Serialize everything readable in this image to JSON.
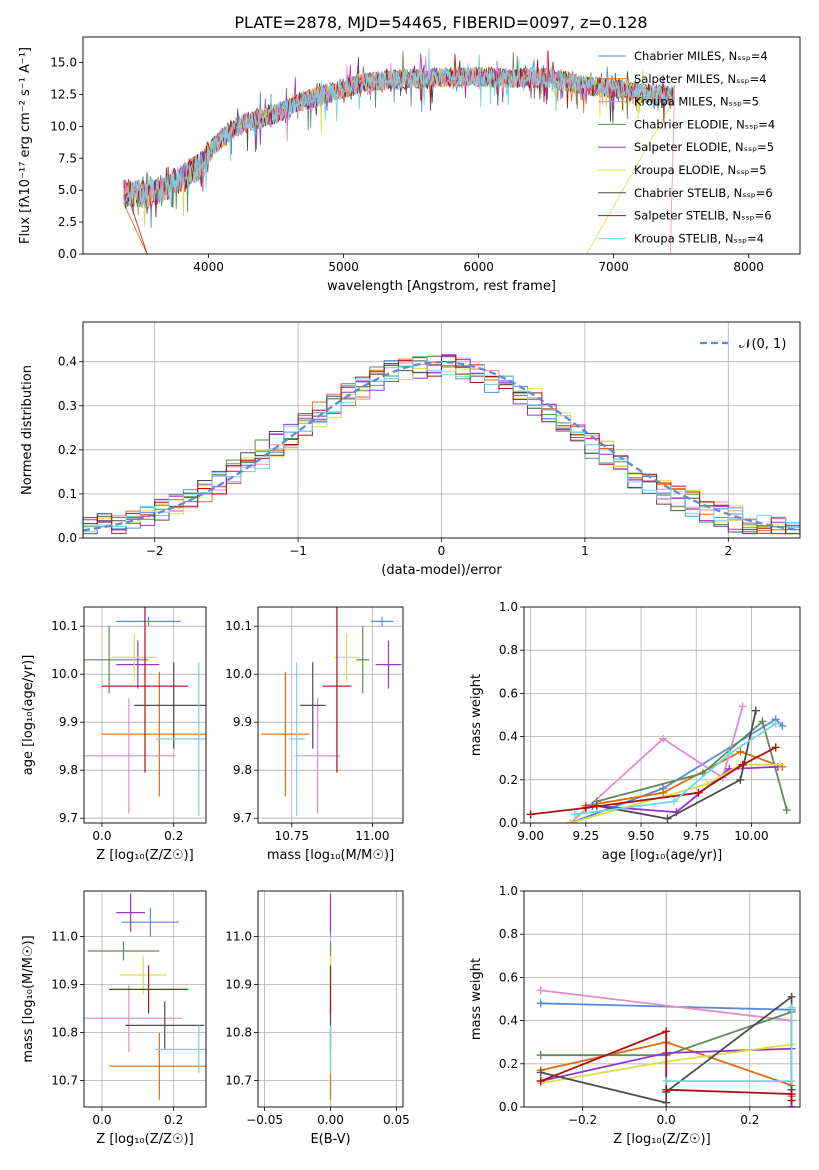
{
  "title": "PLATE=2878, MJD=54465, FIBERID=0097, z=0.128",
  "model_colors": [
    "#5b8bd9",
    "#e06c10",
    "#e58dc6",
    "#5f8a5c",
    "#9933cc",
    "#d7e04a",
    "#4d4d4d",
    "#aa1111",
    "#70d6e0"
  ],
  "chart_data": [
    {
      "id": "spectrum",
      "type": "line",
      "title": "PLATE=2878, MJD=54465, FIBERID=0097, z=0.128",
      "xlabel": "wavelength [Angstrom, rest frame]",
      "ylabel": "Flux [fλ10⁻¹⁷ erg cm⁻² s⁻¹ A⁻¹]",
      "xlim": [
        3070,
        8380
      ],
      "ylim": [
        0,
        17
      ],
      "xticks": [
        "4000",
        "5000",
        "6000",
        "7000",
        "8000"
      ],
      "yticks": [
        "0.0",
        "2.5",
        "5.0",
        "7.5",
        "10.0",
        "12.5",
        "15.0"
      ],
      "legend_position": "upper right",
      "series": [
        {
          "name": "Chabrier MILES, N_SSP=4"
        },
        {
          "name": "Salpeter MILES, N_SSP=4"
        },
        {
          "name": "Kroupa MILES, N_SSP=5"
        },
        {
          "name": "Chabrier ELODIE, N_SSP=4"
        },
        {
          "name": "Salpeter ELODIE, N_SSP=5"
        },
        {
          "name": "Kroupa ELODIE, N_SSP=5"
        },
        {
          "name": "Chabrier STELIB, N_SSP=6"
        },
        {
          "name": "Salpeter STELIB, N_SSP=6"
        },
        {
          "name": "Kroupa STELIB, N_SSP=4"
        }
      ],
      "continuum": {
        "x": [
          3400,
          3550,
          3700,
          3850,
          3950,
          4050,
          4150,
          4300,
          4500,
          4700,
          4900,
          5100,
          5300,
          5600,
          5900,
          6200,
          6500,
          6800,
          7000,
          7200,
          7400
        ],
        "y": [
          4.8,
          4.7,
          5.3,
          6.3,
          7.0,
          8.6,
          9.6,
          10.4,
          11.0,
          12.0,
          12.6,
          13.3,
          13.6,
          13.8,
          13.9,
          13.8,
          13.8,
          13.2,
          13.0,
          12.6,
          12.4
        ]
      }
    },
    {
      "id": "residuals",
      "type": "step",
      "xlabel": "(data-model)/error",
      "ylabel": "Normed distribution",
      "xlim": [
        -2.5,
        2.5
      ],
      "ylim": [
        0,
        0.49
      ],
      "xticks": [
        "−2",
        "−1",
        "0",
        "1",
        "2"
      ],
      "yticks": [
        "0.0",
        "0.1",
        "0.2",
        "0.3",
        "0.4"
      ],
      "grid": true,
      "legend_position": "upper right",
      "legend_label": "𝒩(0, 1)",
      "bin_width": 0.1,
      "gaussian": {
        "mean": 0,
        "sigma": 1
      }
    },
    {
      "id": "age-Z",
      "type": "errorbar",
      "xlabel": "Z [log₁₀(Z/Z☉)]",
      "ylabel": "age  [log₁₀(age/yr)]",
      "xlim": [
        -0.05,
        0.29
      ],
      "ylim": [
        9.69,
        10.14
      ],
      "xticks": [
        "0.0",
        "0.2"
      ],
      "yticks": [
        "9.7",
        "9.8",
        "9.9",
        "10.0",
        "10.1"
      ],
      "grid": true,
      "points": [
        {
          "x": 0.13,
          "y": 10.11,
          "xerr": 0.09,
          "yerr": 0.01
        },
        {
          "x": 0.16,
          "y": 9.875,
          "xerr": 0.16,
          "yerr": 0.13
        },
        {
          "x": 0.075,
          "y": 9.83,
          "xerr": 0.13,
          "yerr": 0.12
        },
        {
          "x": 0.02,
          "y": 10.03,
          "xerr": 0.11,
          "yerr": 0.07
        },
        {
          "x": 0.1,
          "y": 10.02,
          "xerr": 0.06,
          "yerr": 0.05
        },
        {
          "x": 0.09,
          "y": 10.035,
          "xerr": 0.065,
          "yerr": 0.05
        },
        {
          "x": 0.2,
          "y": 9.935,
          "xerr": 0.11,
          "yerr": 0.09
        },
        {
          "x": 0.12,
          "y": 9.975,
          "xerr": 0.12,
          "yerr": 0.18
        },
        {
          "x": 0.27,
          "y": 9.865,
          "xerr": 0.12,
          "yerr": 0.16
        }
      ]
    },
    {
      "id": "age-mass",
      "type": "errorbar",
      "xlabel": "mass [log₁₀(M/M☉)]",
      "ylabel": "",
      "xlim": [
        10.645,
        11.095
      ],
      "ylim": [
        9.69,
        10.14
      ],
      "xticks": [
        "10.75",
        "11.00"
      ],
      "yticks": [
        "9.7",
        "9.8",
        "9.9",
        "10.0",
        "10.1"
      ],
      "grid": true,
      "points": [
        {
          "x": 11.03,
          "y": 10.11,
          "xerr": 0.035,
          "yerr": 0.01
        },
        {
          "x": 10.73,
          "y": 9.875,
          "xerr": 0.075,
          "yerr": 0.13
        },
        {
          "x": 10.83,
          "y": 9.83,
          "xerr": 0.07,
          "yerr": 0.12
        },
        {
          "x": 10.97,
          "y": 10.03,
          "xerr": 0.02,
          "yerr": 0.07
        },
        {
          "x": 11.05,
          "y": 10.02,
          "xerr": 0.04,
          "yerr": 0.05
        },
        {
          "x": 10.92,
          "y": 10.035,
          "xerr": 0.04,
          "yerr": 0.05
        },
        {
          "x": 10.815,
          "y": 9.935,
          "xerr": 0.04,
          "yerr": 0.09
        },
        {
          "x": 10.89,
          "y": 9.975,
          "xerr": 0.045,
          "yerr": 0.18
        },
        {
          "x": 10.765,
          "y": 9.865,
          "xerr": 0.025,
          "yerr": 0.16
        }
      ]
    },
    {
      "id": "weight-age",
      "type": "line",
      "xlabel": "age  [log₁₀(age/yr)]",
      "ylabel": "mass weight",
      "xlim": [
        8.97,
        10.22
      ],
      "ylim": [
        0,
        1.0
      ],
      "xticks": [
        "9.00",
        "9.25",
        "9.50",
        "9.75",
        "10.00"
      ],
      "yticks": [
        "0.0",
        "0.2",
        "0.4",
        "0.6",
        "0.8",
        "1.0"
      ],
      "grid": true,
      "series": [
        {
          "x": [
            9.18,
            9.6,
            10.11,
            10.14
          ],
          "y": [
            0.0,
            0.16,
            0.48,
            0.45
          ]
        },
        {
          "x": [
            9.25,
            9.6,
            9.95,
            10.14
          ],
          "y": [
            0.08,
            0.14,
            0.33,
            0.26
          ]
        },
        {
          "x": [
            9.18,
            9.6,
            9.87,
            9.96
          ],
          "y": [
            0.0,
            0.39,
            0.21,
            0.54
          ]
        },
        {
          "x": [
            9.3,
            9.78,
            10.05,
            10.16
          ],
          "y": [
            0.1,
            0.23,
            0.47,
            0.06
          ]
        },
        {
          "x": [
            9.28,
            9.66,
            9.9,
            10.12
          ],
          "y": [
            0.08,
            0.05,
            0.25,
            0.26
          ]
        },
        {
          "x": [
            9.18,
            9.8,
            9.95,
            10.13
          ],
          "y": [
            0.0,
            0.18,
            0.27,
            0.27
          ]
        },
        {
          "x": [
            9.3,
            9.62,
            9.95,
            10.02
          ],
          "y": [
            0.08,
            0.02,
            0.2,
            0.52
          ]
        },
        {
          "x": [
            9.0,
            9.25,
            9.76,
            9.96,
            10.11
          ],
          "y": [
            0.04,
            0.07,
            0.14,
            0.27,
            0.35
          ]
        },
        {
          "x": [
            9.2,
            9.65,
            9.9,
            10.11
          ],
          "y": [
            0.04,
            0.1,
            0.32,
            0.46
          ]
        }
      ]
    },
    {
      "id": "mass-Z",
      "type": "errorbar",
      "xlabel": "Z [log₁₀(Z/Z☉)]",
      "ylabel": "mass [log₁₀(M/M☉)]",
      "xlim": [
        -0.05,
        0.29
      ],
      "ylim": [
        10.645,
        11.095
      ],
      "xticks": [
        "0.0",
        "0.2"
      ],
      "yticks": [
        "10.7",
        "10.8",
        "10.9",
        "11.0"
      ],
      "grid": true,
      "points": [
        {
          "x": 0.135,
          "y": 11.03,
          "xerr": 0.08,
          "yerr": 0.03
        },
        {
          "x": 0.16,
          "y": 10.73,
          "xerr": 0.14,
          "yerr": 0.07
        },
        {
          "x": 0.075,
          "y": 10.83,
          "xerr": 0.15,
          "yerr": 0.07
        },
        {
          "x": 0.06,
          "y": 10.97,
          "xerr": 0.1,
          "yerr": 0.02
        },
        {
          "x": 0.08,
          "y": 11.05,
          "xerr": 0.04,
          "yerr": 0.04
        },
        {
          "x": 0.115,
          "y": 10.92,
          "xerr": 0.065,
          "yerr": 0.04
        },
        {
          "x": 0.175,
          "y": 10.815,
          "xerr": 0.11,
          "yerr": 0.05
        },
        {
          "x": 0.13,
          "y": 10.89,
          "xerr": 0.11,
          "yerr": 0.05
        },
        {
          "x": 0.27,
          "y": 10.765,
          "xerr": 0.12,
          "yerr": 0.05
        }
      ]
    },
    {
      "id": "mass-ebv",
      "type": "errorbar",
      "xlabel": "E(B-V)",
      "ylabel": "",
      "xlim": [
        -0.055,
        0.055
      ],
      "ylim": [
        10.645,
        11.095
      ],
      "xticks": [
        "−0.05",
        "0.00",
        "0.05"
      ],
      "yticks": [
        "10.7",
        "10.8",
        "10.9",
        "11.0"
      ],
      "grid": true,
      "points": [
        {
          "x": 0,
          "y": 11.03,
          "xerr": 0,
          "yerr": 0.03
        },
        {
          "x": 0,
          "y": 10.73,
          "xerr": 0,
          "yerr": 0.07
        },
        {
          "x": 0,
          "y": 10.83,
          "xerr": 0,
          "yerr": 0.07
        },
        {
          "x": 0,
          "y": 10.97,
          "xerr": 0,
          "yerr": 0.02
        },
        {
          "x": 0,
          "y": 11.05,
          "xerr": 0,
          "yerr": 0.04
        },
        {
          "x": 0,
          "y": 10.92,
          "xerr": 0,
          "yerr": 0.04
        },
        {
          "x": 0,
          "y": 10.815,
          "xerr": 0,
          "yerr": 0.05
        },
        {
          "x": 0,
          "y": 10.89,
          "xerr": 0,
          "yerr": 0.05
        },
        {
          "x": 0,
          "y": 10.765,
          "xerr": 0,
          "yerr": 0.05
        }
      ]
    },
    {
      "id": "weight-Z",
      "type": "line",
      "xlabel": "Z [log₁₀(Z/Z☉)]",
      "ylabel": "mass weight",
      "xlim": [
        -0.34,
        0.32
      ],
      "ylim": [
        0,
        1.0
      ],
      "xticks": [
        "−0.2",
        "0.0",
        "0.2"
      ],
      "yticks": [
        "0.0",
        "0.2",
        "0.4",
        "0.6",
        "0.8",
        "1.0"
      ],
      "grid": true,
      "series": [
        {
          "x": [
            -0.3,
            0.3,
            0.3
          ],
          "y": [
            0.48,
            0.45,
            0.0
          ]
        },
        {
          "x": [
            -0.3,
            0.0,
            0.3,
            0.3
          ],
          "y": [
            0.17,
            0.3,
            0.1,
            0.05
          ]
        },
        {
          "x": [
            -0.3,
            0.3,
            0.3
          ],
          "y": [
            0.54,
            0.4,
            0.0
          ]
        },
        {
          "x": [
            -0.3,
            0.0,
            0.3
          ],
          "y": [
            0.24,
            0.24,
            0.44
          ]
        },
        {
          "x": [
            -0.3,
            0.0,
            0.3,
            0.3
          ],
          "y": [
            0.12,
            0.25,
            0.27,
            0.0
          ]
        },
        {
          "x": [
            -0.3,
            0.0,
            0.3
          ],
          "y": [
            0.11,
            0.21,
            0.29
          ]
        },
        {
          "x": [
            -0.3,
            0.0,
            0.0,
            0.3,
            0.3
          ],
          "y": [
            0.16,
            0.02,
            0.07,
            0.51,
            0.08
          ]
        },
        {
          "x": [
            -0.3,
            0.0,
            0.0,
            0.3,
            0.3
          ],
          "y": [
            0.12,
            0.35,
            0.08,
            0.06,
            0.03
          ]
        },
        {
          "x": [
            0.0,
            0.3,
            0.3
          ],
          "y": [
            0.12,
            0.12,
            0.46
          ]
        }
      ]
    }
  ]
}
